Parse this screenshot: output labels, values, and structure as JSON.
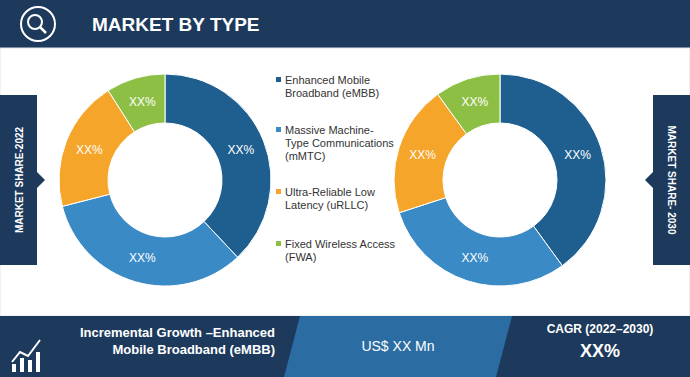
{
  "header": {
    "title": "MARKET BY TYPE"
  },
  "chart_data": {
    "type": "pie",
    "categories": [
      "Enhanced Mobile Broadband (eMBB)",
      "Massive Machine-Type Communications (mMTC)",
      "Ultra-Reliable Low Latency (uRLLC)",
      "Fixed Wireless Access (FWA)"
    ],
    "colors": [
      "#1f5f8f",
      "#3a8ac6",
      "#f5a52a",
      "#8dbf45"
    ],
    "series": [
      {
        "name": "MARKET SHARE-2022",
        "values": [
          38,
          33,
          20,
          9
        ],
        "value_labels": [
          "XX%",
          "XX%",
          "XX%",
          "XX%"
        ]
      },
      {
        "name": "MARKET SHARE- 2030",
        "values": [
          40,
          30,
          20,
          10
        ],
        "value_labels": [
          "XX%",
          "XX%",
          "XX%",
          "XX%"
        ]
      }
    ],
    "data_labels": true
  },
  "footer": {
    "label": "Incremental Growth –Enhanced Mobile Broadband (eMBB)",
    "value": "US$ XX Mn",
    "cagr_label": "CAGR (2022–2030)",
    "cagr_value": "XX%"
  }
}
